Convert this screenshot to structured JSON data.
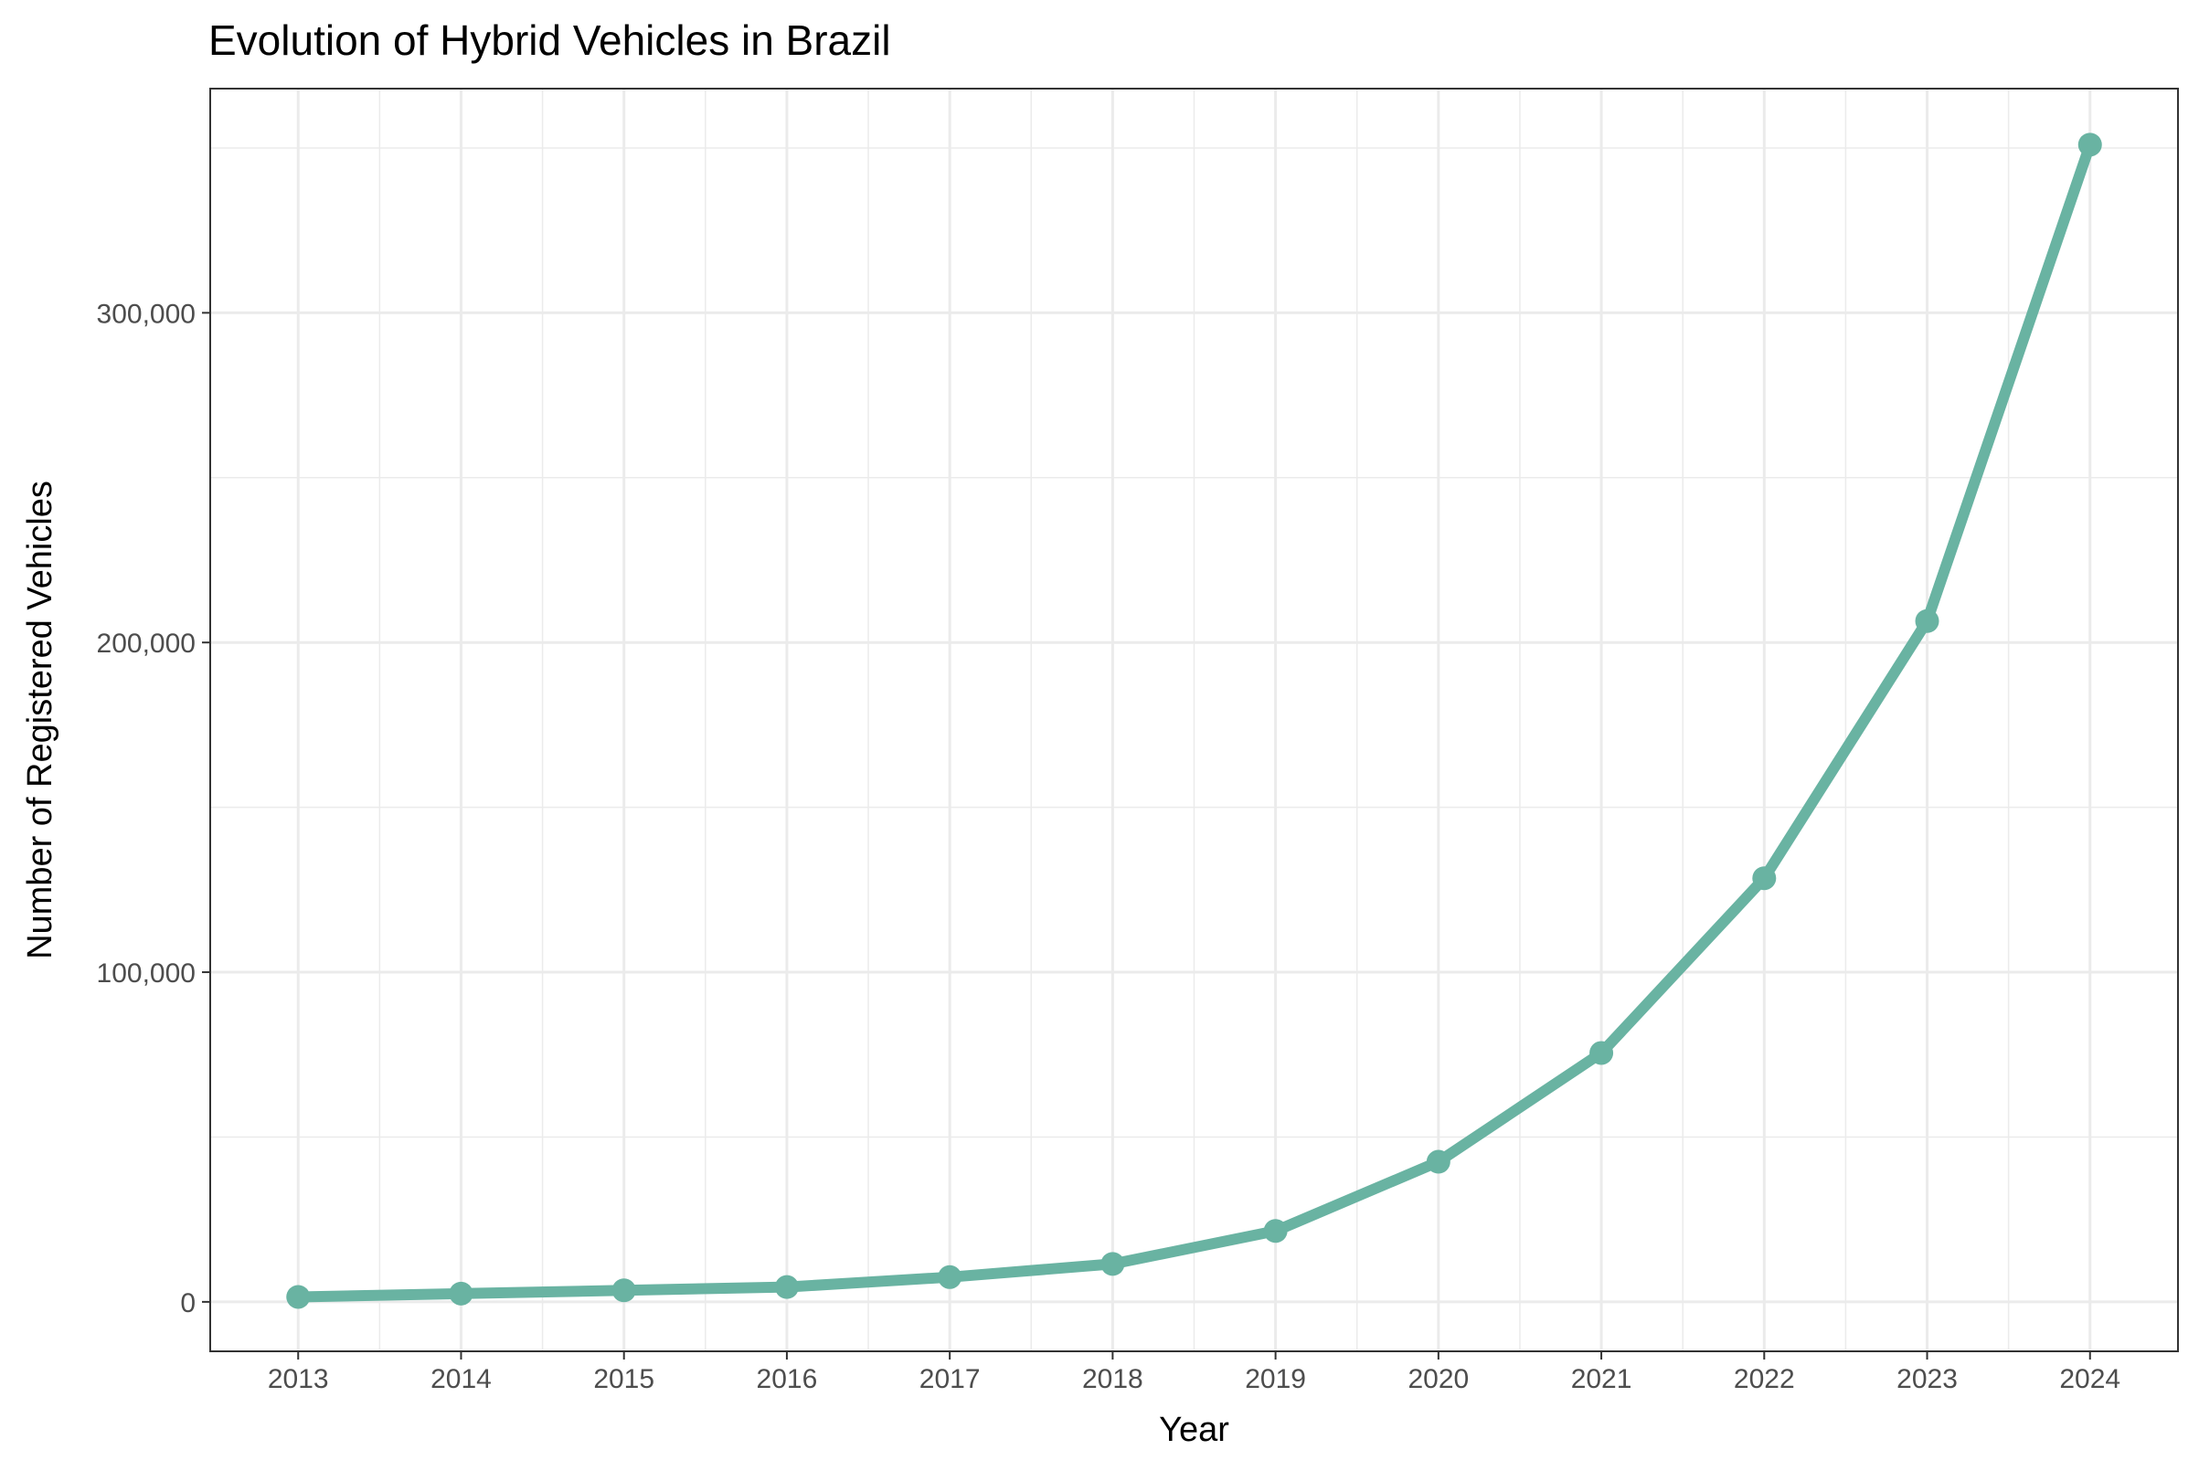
{
  "chart_data": {
    "type": "line",
    "title": "Evolution of Hybrid Vehicles in Brazil",
    "xlabel": "Year",
    "ylabel": "Number of Registered Vehicles",
    "x": [
      2013,
      2014,
      2015,
      2016,
      2017,
      2018,
      2019,
      2020,
      2021,
      2022,
      2023,
      2024
    ],
    "series": [
      {
        "values": [
          1500,
          2500,
          3500,
          4500,
          7500,
          11500,
          21500,
          42500,
          75500,
          128500,
          206500,
          351000
        ]
      }
    ],
    "x_ticks": [
      "2013",
      "2014",
      "2015",
      "2016",
      "2017",
      "2018",
      "2019",
      "2020",
      "2021",
      "2022",
      "2023",
      "2024"
    ],
    "y_ticks": [
      0,
      100000,
      200000,
      300000
    ],
    "y_tick_labels": [
      "0",
      "100,000",
      "200,000",
      "300,000"
    ],
    "xlim": [
      2012.46,
      2024.54
    ],
    "ylim": [
      -15000,
      368000
    ],
    "grid": true,
    "legend": "none",
    "colors": {
      "line": "#69b3a2",
      "grid": "#ebebeb",
      "border": "#333333"
    }
  }
}
